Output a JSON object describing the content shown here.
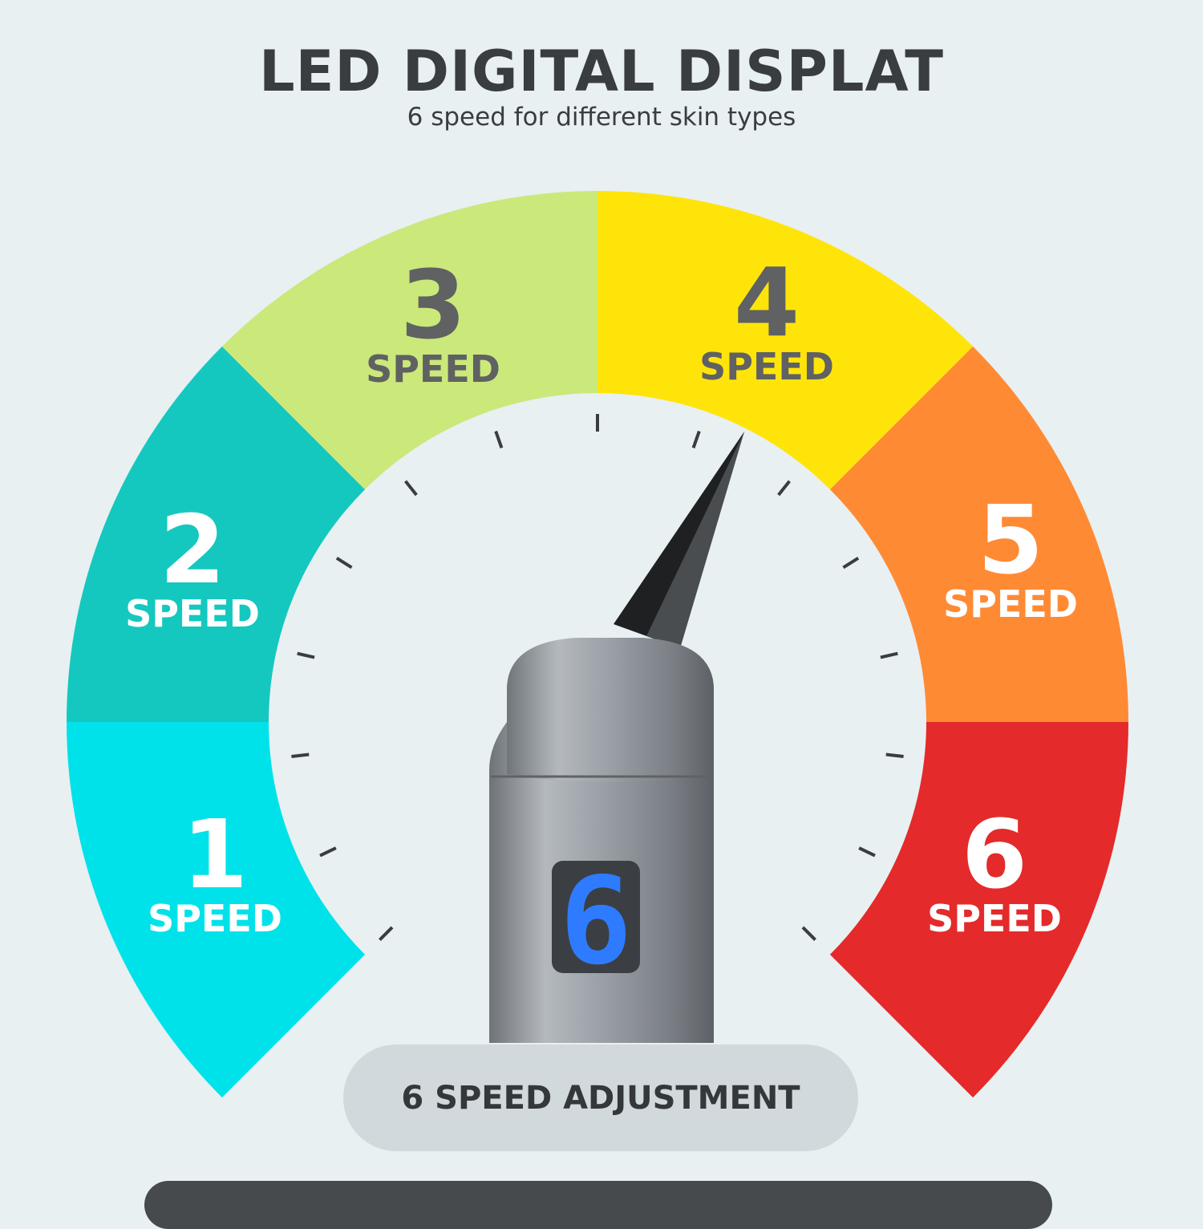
{
  "header": {
    "title": "LED DIGITAL DISPLAT",
    "subtitle": "6 speed for different skin types"
  },
  "gauge": {
    "segments": [
      {
        "number": "1",
        "label": "SPEED",
        "color": "#00e2ea",
        "text_color": "#ffffff"
      },
      {
        "number": "2",
        "label": "SPEED",
        "color": "#14c8bf",
        "text_color": "#ffffff"
      },
      {
        "number": "3",
        "label": "SPEED",
        "color": "#cbe87a",
        "text_color": "#5f6163"
      },
      {
        "number": "4",
        "label": "SPEED",
        "color": "#ffe40a",
        "text_color": "#5f6163"
      },
      {
        "number": "5",
        "label": "SPEED",
        "color": "#ff8a34",
        "text_color": "#ffffff"
      },
      {
        "number": "6",
        "label": "SPEED",
        "color": "#e42a2a",
        "text_color": "#ffffff"
      }
    ],
    "tick_count": 15,
    "needle_speed": 4
  },
  "device": {
    "display_digit": "6",
    "display_color": "#2f7bff"
  },
  "button": {
    "label": "6 SPEED ADJUSTMENT"
  }
}
